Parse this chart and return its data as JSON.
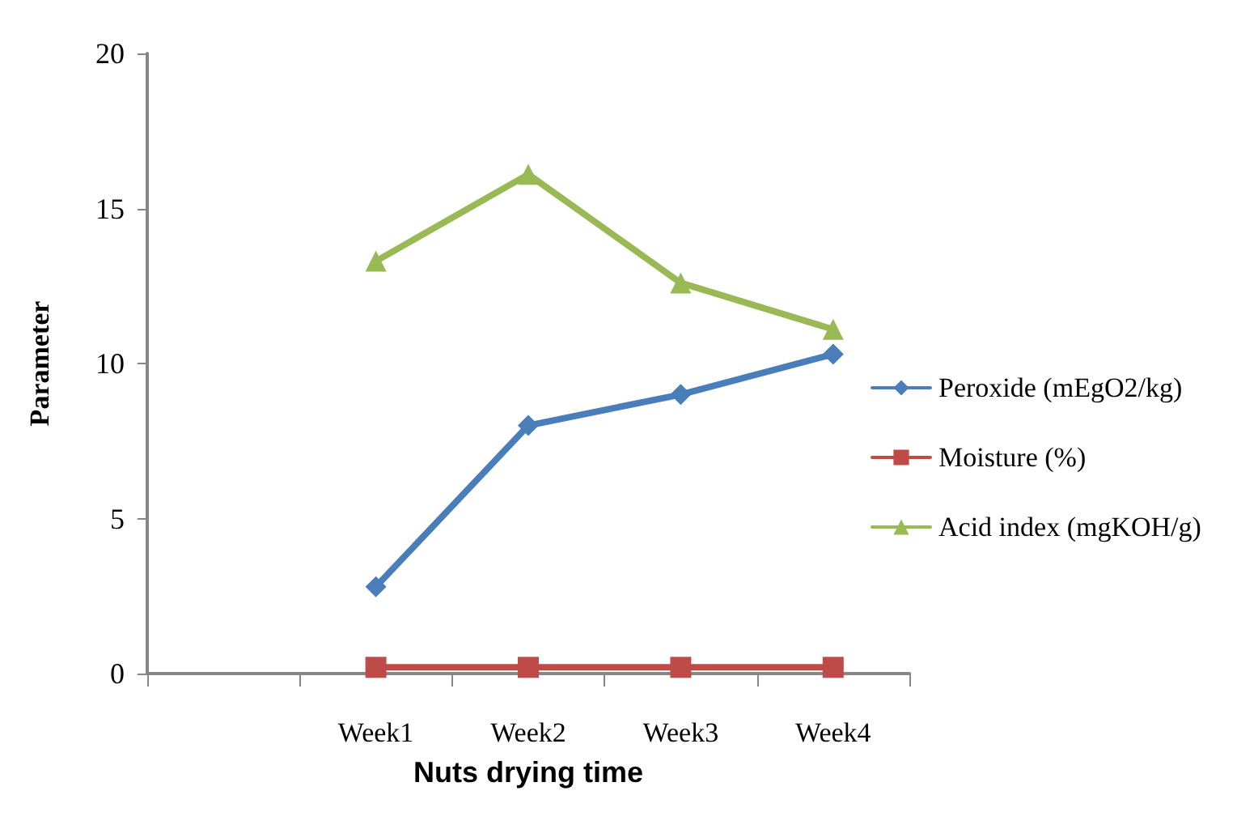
{
  "chart_data": {
    "type": "line",
    "xlabel": "Nuts drying time",
    "ylabel": "Parameter",
    "categories": [
      null,
      "Week1",
      "Week2",
      "Week3",
      "Week4"
    ],
    "series": [
      {
        "name": "Peroxide (mEgO2/kg)",
        "color": "#4a7ebb",
        "marker": "diamond",
        "values": [
          null,
          2.8,
          8.0,
          9.0,
          10.3
        ]
      },
      {
        "name": "Moisture (%)",
        "color": "#be4b48",
        "marker": "square",
        "values": [
          null,
          0.2,
          0.2,
          0.2,
          0.2
        ]
      },
      {
        "name": "Acid index (mgKOH/g)",
        "color": "#98b954",
        "marker": "triangle",
        "values": [
          null,
          13.3,
          16.1,
          12.6,
          11.1
        ]
      }
    ],
    "ylim": [
      0,
      20
    ],
    "yticks": [
      0,
      5,
      10,
      15,
      20
    ],
    "grid": false,
    "legend": "right",
    "line_style": "solid"
  }
}
